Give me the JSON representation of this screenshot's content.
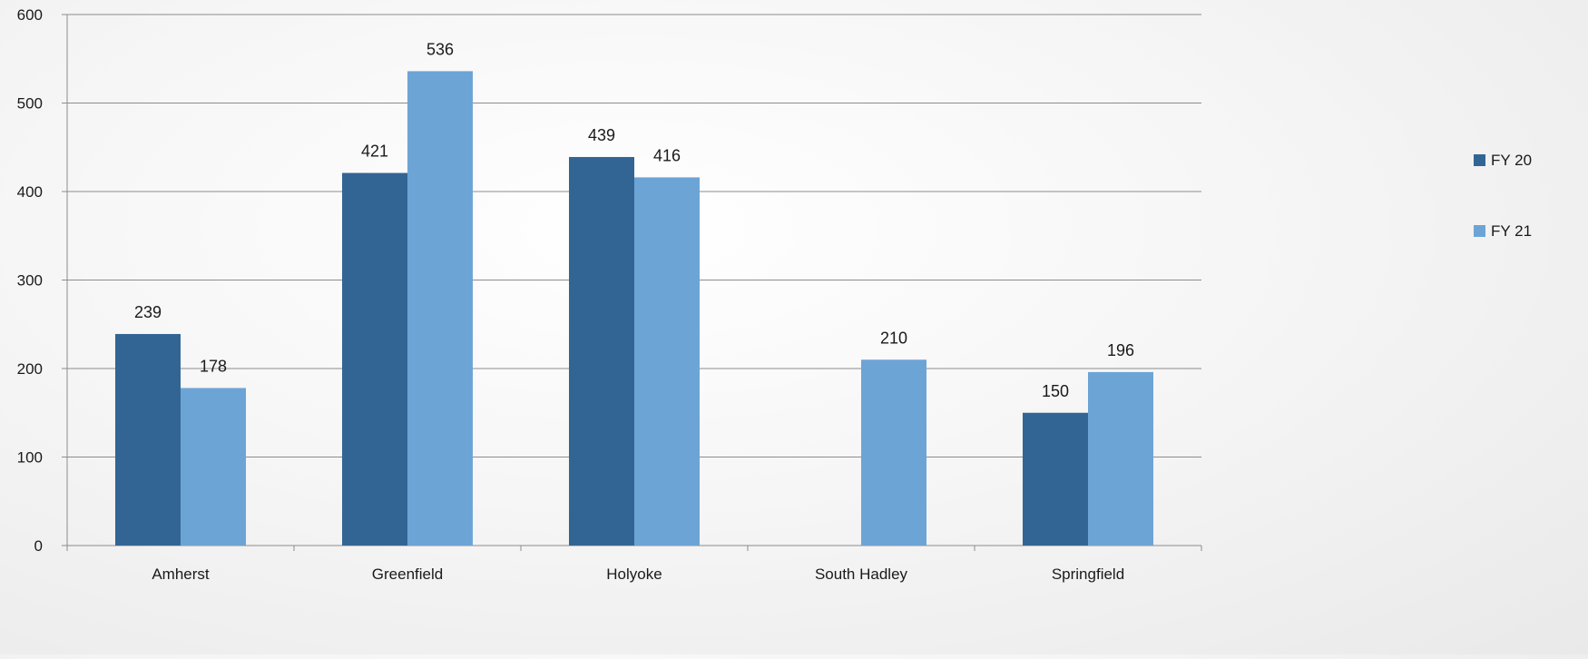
{
  "chart_data": {
    "type": "bar",
    "categories": [
      "Amherst",
      "Greenfield",
      "Holyoke",
      "South Hadley",
      "Springfield"
    ],
    "series": [
      {
        "name": "FY 20",
        "values": [
          239,
          421,
          439,
          null,
          150
        ],
        "color": "#336594"
      },
      {
        "name": "FY 21",
        "values": [
          178,
          536,
          416,
          210,
          196
        ],
        "color": "#6da4d6"
      }
    ],
    "ylim": [
      0,
      600
    ],
    "yticks": [
      0,
      100,
      200,
      300,
      400,
      500,
      600
    ],
    "title": "",
    "xlabel": "",
    "ylabel": "",
    "grid": true,
    "legend_position": "right",
    "gridline_color": "#8c8c8c",
    "axis_color": "#8c8c8c"
  }
}
